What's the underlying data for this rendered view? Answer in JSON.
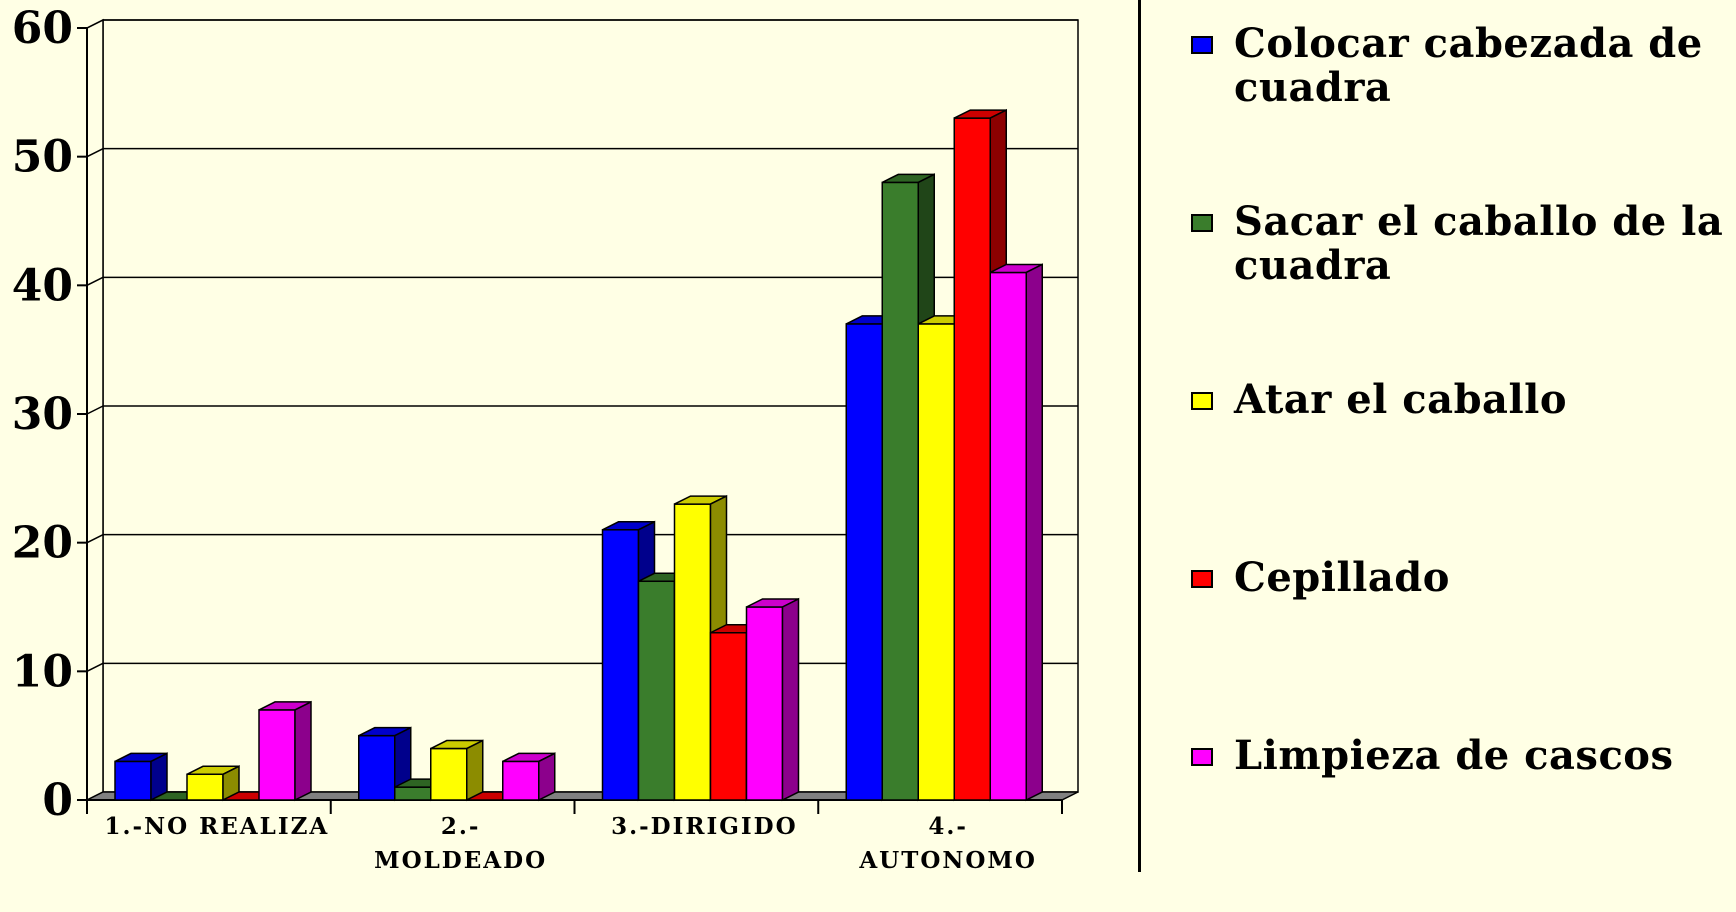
{
  "chart_data": {
    "type": "bar",
    "categories": [
      [
        "1.-NO REALIZA"
      ],
      [
        "2.-",
        "MOLDEADO"
      ],
      [
        "3.-DIRIGIDO"
      ],
      [
        "4.-",
        "AUTONOMO"
      ]
    ],
    "series": [
      {
        "name": "Colocar cabezada de cuadra",
        "color": "#0000FF",
        "values": [
          3,
          5,
          21,
          37
        ]
      },
      {
        "name": "Sacar el caballo de la cuadra",
        "color": "#3A7D2C",
        "values": [
          0,
          1,
          17,
          48
        ]
      },
      {
        "name": "Atar el caballo",
        "color": "#FFFF00",
        "values": [
          2,
          4,
          23,
          37
        ]
      },
      {
        "name": "Cepillado",
        "color": "#FF0000",
        "values": [
          0,
          0,
          13,
          53
        ]
      },
      {
        "name": "Limpieza de cascos",
        "color": "#FF00FF",
        "values": [
          7,
          3,
          15,
          41
        ]
      }
    ],
    "ylim": [
      0,
      60
    ],
    "yticks": [
      "0",
      "10",
      "20",
      "30",
      "40",
      "50",
      "60"
    ],
    "grid": true,
    "legend_position": "right",
    "background": "#FFFFE5"
  }
}
